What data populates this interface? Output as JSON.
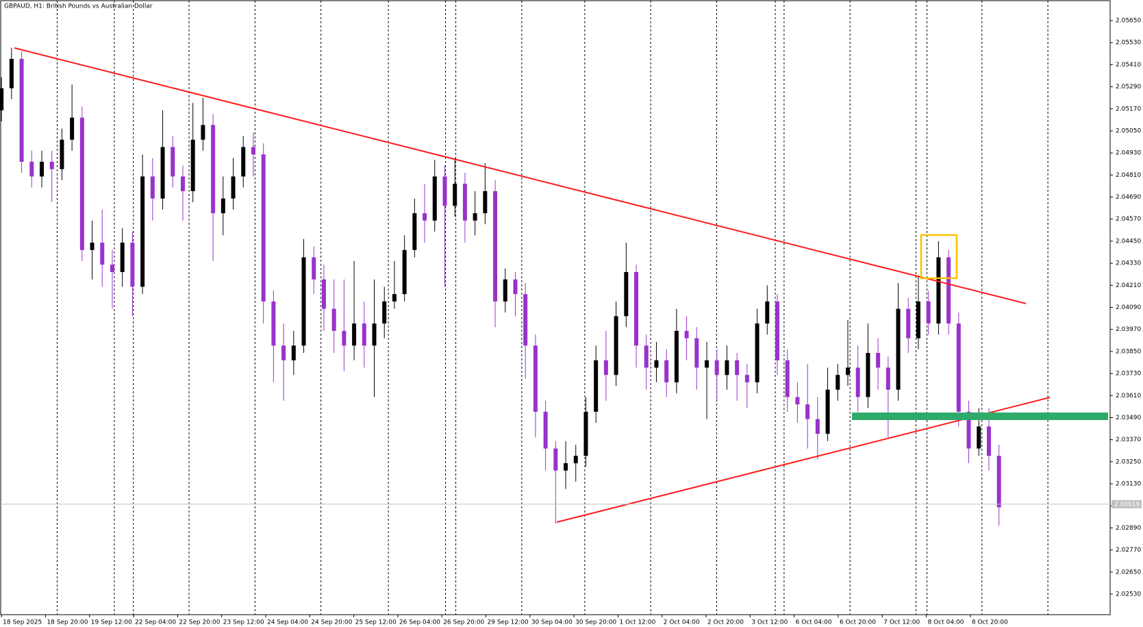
{
  "chart_data": {
    "type": "candlestick",
    "title": "GBPAUD, H1:  British Pounds vs Australian Dollar",
    "up_color": "#000000",
    "down_color": "#9932cc",
    "ylim": [
      2.02418,
      2.05762
    ],
    "yticks": [
      {
        "value": 2.0565,
        "label": "2.05650"
      },
      {
        "value": 2.0553,
        "label": "2.05530"
      },
      {
        "value": 2.0541,
        "label": "2.05410"
      },
      {
        "value": 2.0529,
        "label": "2.05290"
      },
      {
        "value": 2.0517,
        "label": "2.05170"
      },
      {
        "value": 2.0505,
        "label": "2.05050"
      },
      {
        "value": 2.0493,
        "label": "2.04930"
      },
      {
        "value": 2.0481,
        "label": "2.04810"
      },
      {
        "value": 2.0469,
        "label": "2.04690"
      },
      {
        "value": 2.0457,
        "label": "2.04570"
      },
      {
        "value": 2.0445,
        "label": "2.04450"
      },
      {
        "value": 2.0433,
        "label": "2.04330"
      },
      {
        "value": 2.0421,
        "label": "2.04210"
      },
      {
        "value": 2.0409,
        "label": "2.04090"
      },
      {
        "value": 2.0397,
        "label": "2.03970"
      },
      {
        "value": 2.0385,
        "label": "2.03850"
      },
      {
        "value": 2.0373,
        "label": "2.03730"
      },
      {
        "value": 2.0361,
        "label": "2.03610"
      },
      {
        "value": 2.0349,
        "label": "2.03490"
      },
      {
        "value": 2.0337,
        "label": "2.03370"
      },
      {
        "value": 2.0325,
        "label": "2.03250"
      },
      {
        "value": 2.0313,
        "label": "2.03130"
      },
      {
        "value": 2.0301,
        "label": "2.03010"
      },
      {
        "value": 2.0289,
        "label": "2.02890"
      },
      {
        "value": 2.0277,
        "label": "2.02770"
      },
      {
        "value": 2.0265,
        "label": "2.02650"
      },
      {
        "value": 2.0253,
        "label": "2.02530"
      }
    ],
    "last_price": 2.03019,
    "categories": [
      "18 Sep 2025",
      "18 Sep 20:00",
      "19 Sep 12:00",
      "22 Sep 04:00",
      "22 Sep 20:00",
      "23 Sep 12:00",
      "24 Sep 04:00",
      "24 Sep 20:00",
      "25 Sep 12:00",
      "26 Sep 04:00",
      "26 Sep 20:00",
      "29 Sep 12:00",
      "30 Sep 04:00",
      "30 Sep 20:00",
      "1 Oct 12:00",
      "2 Oct 04:00",
      "2 Oct 20:00",
      "3 Oct 12:00",
      "6 Oct 04:00",
      "6 Oct 20:00",
      "7 Oct 12:00",
      "8 Oct 04:00",
      "8 Oct 20:00"
    ],
    "ohlc": [
      [
        2.05162,
        2.05342,
        2.05102,
        2.05282
      ],
      [
        2.05282,
        2.05502,
        2.05222,
        2.05442
      ],
      [
        2.05442,
        2.05482,
        2.04822,
        2.04882
      ],
      [
        2.04882,
        2.04942,
        2.04742,
        2.04802
      ],
      [
        2.04802,
        2.04942,
        2.04742,
        2.04882
      ],
      [
        2.04882,
        2.04942,
        2.04662,
        2.04842
      ],
      [
        2.04842,
        2.05062,
        2.04782,
        2.05002
      ],
      [
        2.05002,
        2.05302,
        2.04942,
        2.05122
      ],
      [
        2.05122,
        2.05182,
        2.04342,
        2.04402
      ],
      [
        2.04402,
        2.04562,
        2.04242,
        2.04442
      ],
      [
        2.04442,
        2.04622,
        2.04202,
        2.04322
      ],
      [
        2.04322,
        2.04402,
        2.04082,
        2.04282
      ],
      [
        2.04282,
        2.04522,
        2.04202,
        2.04442
      ],
      [
        2.04442,
        2.04502,
        2.04042,
        2.04202
      ],
      [
        2.04202,
        2.04922,
        2.04162,
        2.04802
      ],
      [
        2.04802,
        2.04902,
        2.04562,
        2.04682
      ],
      [
        2.04682,
        2.05162,
        2.04622,
        2.04962
      ],
      [
        2.04962,
        2.05022,
        2.04742,
        2.04802
      ],
      [
        2.04802,
        2.04862,
        2.04562,
        2.04722
      ],
      [
        2.04722,
        2.05202,
        2.04662,
        2.05002
      ],
      [
        2.05002,
        2.0523,
        2.04942,
        2.05082
      ],
      [
        2.05082,
        2.05142,
        2.04342,
        2.04602
      ],
      [
        2.04602,
        2.04802,
        2.04482,
        2.04682
      ],
      [
        2.04682,
        2.04902,
        2.04622,
        2.04802
      ],
      [
        2.04802,
        2.05022,
        2.04742,
        2.04962
      ],
      [
        2.04962,
        2.05042,
        2.04802,
        2.04922
      ],
      [
        2.04922,
        2.04982,
        2.04002,
        2.04122
      ],
      [
        2.04122,
        2.04182,
        2.03682,
        2.03882
      ],
      [
        2.03882,
        2.04002,
        2.03582,
        2.03802
      ],
      [
        2.03802,
        2.03962,
        2.03722,
        2.03882
      ],
      [
        2.03882,
        2.04462,
        2.03842,
        2.04362
      ],
      [
        2.04362,
        2.04422,
        2.04162,
        2.04242
      ],
      [
        2.04242,
        2.04322,
        2.03962,
        2.04082
      ],
      [
        2.04082,
        2.04242,
        2.03842,
        2.03962
      ],
      [
        2.03962,
        2.04242,
        2.03742,
        2.03882
      ],
      [
        2.03882,
        2.04342,
        2.03802,
        2.04002
      ],
      [
        2.04002,
        2.04122,
        2.03762,
        2.03882
      ],
      [
        2.03882,
        2.04242,
        2.03602,
        2.04002
      ],
      [
        2.04002,
        2.04202,
        2.03922,
        2.04122
      ],
      [
        2.04122,
        2.04342,
        2.04082,
        2.04162
      ],
      [
        2.04162,
        2.04482,
        2.04122,
        2.04402
      ],
      [
        2.04402,
        2.04682,
        2.04362,
        2.04602
      ],
      [
        2.04602,
        2.04762,
        2.04442,
        2.04562
      ],
      [
        2.04562,
        2.04892,
        2.04502,
        2.04802
      ],
      [
        2.04802,
        2.04862,
        2.04202,
        2.04642
      ],
      [
        2.04642,
        2.04902,
        2.04582,
        2.04762
      ],
      [
        2.04762,
        2.04822,
        2.04442,
        2.04562
      ],
      [
        2.04562,
        2.04722,
        2.04482,
        2.04602
      ],
      [
        2.04602,
        2.04874,
        2.04542,
        2.04722
      ],
      [
        2.04722,
        2.04782,
        2.03982,
        2.04122
      ],
      [
        2.04122,
        2.04302,
        2.04062,
        2.04242
      ],
      [
        2.04242,
        2.04282,
        2.04042,
        2.04162
      ],
      [
        2.04162,
        2.04222,
        2.03702,
        2.03882
      ],
      [
        2.03882,
        2.03942,
        2.03382,
        2.03522
      ],
      [
        2.03522,
        2.03582,
        2.03202,
        2.03322
      ],
      [
        2.03322,
        2.03362,
        2.02914,
        2.03202
      ],
      [
        2.03202,
        2.03362,
        2.03102,
        2.03242
      ],
      [
        2.03242,
        2.03342,
        2.03142,
        2.03282
      ],
      [
        2.03282,
        2.03602,
        2.03222,
        2.03522
      ],
      [
        2.03522,
        2.03882,
        2.03462,
        2.03802
      ],
      [
        2.03802,
        2.03962,
        2.03582,
        2.03722
      ],
      [
        2.03722,
        2.04122,
        2.03662,
        2.04042
      ],
      [
        2.04042,
        2.04442,
        2.03982,
        2.04282
      ],
      [
        2.04282,
        2.04322,
        2.03762,
        2.03882
      ],
      [
        2.03882,
        2.03942,
        2.03642,
        2.03762
      ],
      [
        2.03762,
        2.03902,
        2.03682,
        2.03802
      ],
      [
        2.03802,
        2.03862,
        2.03602,
        2.03682
      ],
      [
        2.03682,
        2.04082,
        2.03622,
        2.03962
      ],
      [
        2.03962,
        2.04042,
        2.03802,
        2.03922
      ],
      [
        2.03922,
        2.03982,
        2.03642,
        2.03762
      ],
      [
        2.03762,
        2.03902,
        2.03482,
        2.03802
      ],
      [
        2.03802,
        2.03862,
        2.03582,
        2.03722
      ],
      [
        2.03722,
        2.03882,
        2.03642,
        2.03802
      ],
      [
        2.03802,
        2.03842,
        2.03582,
        2.03722
      ],
      [
        2.03722,
        2.03782,
        2.03542,
        2.03682
      ],
      [
        2.03682,
        2.04082,
        2.03622,
        2.04002
      ],
      [
        2.04002,
        2.0421,
        2.03942,
        2.04122
      ],
      [
        2.04122,
        2.04162,
        2.03722,
        2.03802
      ],
      [
        2.03802,
        2.03862,
        2.03522,
        2.03602
      ],
      [
        2.03602,
        2.03682,
        2.03462,
        2.03562
      ],
      [
        2.03562,
        2.03782,
        2.03322,
        2.03482
      ],
      [
        2.03482,
        2.03602,
        2.03262,
        2.03402
      ],
      [
        2.03402,
        2.03762,
        2.03362,
        2.03642
      ],
      [
        2.03642,
        2.03782,
        2.03582,
        2.03722
      ],
      [
        2.03722,
        2.04022,
        2.03662,
        2.03762
      ],
      [
        2.03762,
        2.03882,
        2.03522,
        2.03602
      ],
      [
        2.03602,
        2.04002,
        2.03542,
        2.03842
      ],
      [
        2.03842,
        2.03922,
        2.03642,
        2.03762
      ],
      [
        2.03762,
        2.03822,
        2.03382,
        2.03642
      ],
      [
        2.03642,
        2.04222,
        2.03582,
        2.04082
      ],
      [
        2.04082,
        2.04142,
        2.03842,
        2.03922
      ],
      [
        2.03922,
        2.04262,
        2.03862,
        2.04122
      ],
      [
        2.04122,
        2.04182,
        2.03942,
        2.04002
      ],
      [
        2.04002,
        2.0445,
        2.03942,
        2.04362
      ],
      [
        2.04362,
        2.04402,
        2.03942,
        2.04002
      ],
      [
        2.04002,
        2.04062,
        2.03442,
        2.03522
      ],
      [
        2.03522,
        2.03582,
        2.03242,
        2.03322
      ],
      [
        2.03322,
        2.03542,
        2.03282,
        2.03442
      ],
      [
        2.03442,
        2.03542,
        2.03202,
        2.03282
      ],
      [
        2.03282,
        2.03342,
        2.02902,
        2.03002
      ]
    ]
  }
}
